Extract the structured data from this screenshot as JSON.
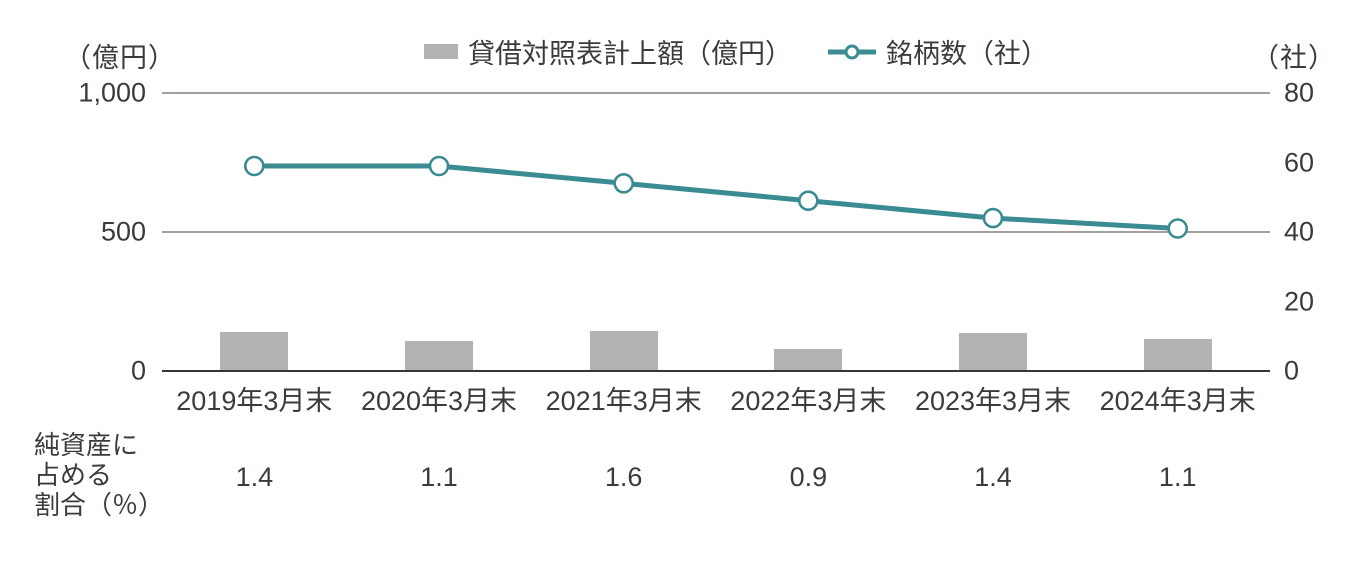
{
  "chart_data": {
    "type": "combo-bar-line",
    "title": "",
    "categories": [
      "2019年3月末",
      "2020年3月末",
      "2021年3月末",
      "2022年3月末",
      "2023年3月末",
      "2024年3月末"
    ],
    "series": [
      {
        "name": "貸借対照表計上額（億円）",
        "type": "bar",
        "axis": "left",
        "values": [
          140,
          108,
          144,
          78,
          135,
          114
        ],
        "color": "#b3b3b3"
      },
      {
        "name": "銘柄数（社）",
        "type": "line",
        "axis": "right",
        "values": [
          59,
          59,
          54,
          49,
          44,
          41
        ],
        "color": "#3a8b92",
        "marker": "open-circle",
        "marker_fill": "#ffffff"
      }
    ],
    "left_axis": {
      "unit": "（億円）",
      "ticks": [
        "1,000",
        "500",
        "0"
      ],
      "tick_values": [
        1000,
        500,
        0
      ],
      "range": [
        0,
        1000
      ],
      "gridlines": true
    },
    "right_axis": {
      "unit": "（社）",
      "ticks": [
        "80",
        "60",
        "40",
        "20",
        "0"
      ],
      "tick_values": [
        80,
        60,
        40,
        20,
        0
      ],
      "range": [
        0,
        80
      ],
      "gridlines": false
    },
    "annotation_row": {
      "label_lines": [
        "純資産に",
        "占める",
        "割合（％）"
      ],
      "values": [
        "1.4",
        "1.1",
        "1.6",
        "0.9",
        "1.4",
        "1.1"
      ]
    },
    "legend_position": "top-center",
    "grid": "horizontal lines at left-axis ticks only; bottom baseline heavier"
  },
  "colors": {
    "text": "#3e3a39",
    "gridline": "#45403e",
    "baseline": "#3a3533",
    "bar": "#b3b3b3",
    "line": "#3a8b92",
    "background": "#ffffff"
  }
}
